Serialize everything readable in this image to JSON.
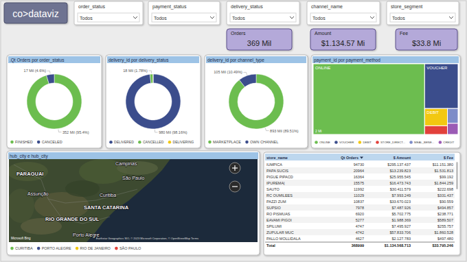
{
  "header": {
    "logo": "co>dataviz"
  },
  "filters": [
    {
      "label": "order_status",
      "value": "Todos"
    },
    {
      "label": "payment_status",
      "value": "Todos"
    },
    {
      "label": "delivery_status",
      "value": "Todos"
    },
    {
      "label": "channel_name",
      "value": "Todos"
    },
    {
      "label": "store_segment",
      "value": "Todos"
    }
  ],
  "cards": [
    {
      "title": "Orders",
      "value": "369 Mil"
    },
    {
      "title": "Amount",
      "value": "$1.134.57 Mi"
    },
    {
      "title": "Fee",
      "value": "$33.8 Mi"
    }
  ],
  "chart_data": [
    {
      "type": "donut",
      "title": ".Qt Orders por order_status",
      "categories": [
        "FINISHED",
        "CANCELED"
      ],
      "values": [
        352,
        17
      ],
      "value_labels": [
        "352 Mil (95.4%)",
        "17 Mil (4.6%)"
      ],
      "colors": [
        "#6cbd4f",
        "#3b4d8c"
      ],
      "data_labels": true,
      "legend": "bottom-left"
    },
    {
      "type": "donut",
      "title": "delivery_id por delivery_status",
      "categories": [
        "DELIVERED",
        "CANCELLED",
        "DELIVERING"
      ],
      "values": [
        980,
        18,
        0.6
      ],
      "value_labels": [
        "980 Mil (98.16%)",
        "18 Mil (1.78%)",
        null
      ],
      "colors": [
        "#3b4d8c",
        "#6cbd4f",
        "#f2c811"
      ],
      "data_labels": true,
      "legend": "bottom-left"
    },
    {
      "type": "donut",
      "title": "delivery_id por channel_type",
      "categories": [
        "MARKETPLACE",
        "OWN CHANNEL"
      ],
      "values": [
        893,
        105
      ],
      "value_labels": [
        "893 Mil (89.51%)",
        "105 Mil (10.49%)"
      ],
      "colors": [
        "#6cbd4f",
        "#3b4d8c"
      ],
      "data_labels": true,
      "legend": "bottom-left"
    },
    {
      "type": "treemap",
      "title": "payment_id por payment_method",
      "categories": [
        "ONLINE",
        "VOUCHER",
        "DEBIT",
        "STORE_DIRECT...",
        "MEAL_BENE...",
        "CREDIT"
      ],
      "values": [
        2,
        0.38,
        0.1,
        0.05,
        0.04,
        0.03
      ],
      "value_labels": [
        "2 Mi",
        null,
        null,
        null,
        null,
        null
      ],
      "colors": [
        "#6cbd4f",
        "#3b4d8c",
        "#f2c811",
        "#e2413b",
        "#7d8cc8",
        "#9b5bb5"
      ],
      "data_labels": true,
      "legend": "bottom-left"
    }
  ],
  "map": {
    "title": "hub_city e hub_city",
    "places": [
      "PARAGUAI",
      "Assunção",
      "Campinas",
      "São Paulo",
      "Curitiba",
      "SANTA CATARINA",
      "RIO GRANDE DO SUL",
      "Porto Alegre"
    ],
    "logo": "Microsoft Bing",
    "attribution": "Earthstar Geographics SIO, © 2023 Microsoft Corporation, © OpenStreetMap  Terms",
    "legend": [
      {
        "name": "CURITIBA",
        "color": "#6cbd4f"
      },
      {
        "name": "PORTO ALEGRE",
        "color": "#3b4d8c"
      },
      {
        "name": "RIO DE JANEIRO",
        "color": "#f2c811"
      },
      {
        "name": "SÃO PAULO",
        "color": "#e2413b"
      }
    ]
  },
  "table": {
    "columns": [
      "store_name",
      "Qt Orders",
      "$ Amount",
      "$ Fee"
    ],
    "rows": [
      [
        "IUMPICA",
        "94730",
        "$295.137.437",
        "$11.151.380"
      ],
      [
        "PAPA SUCIS",
        "20964",
        "$13.239.823",
        "$1.531.813"
      ],
      [
        "PIGUE PIPACD",
        "16364",
        "$25.955.545",
        "$99.192"
      ],
      [
        "IPUREMA|",
        "15575",
        "$16.473.743",
        "$1.844.259"
      ],
      [
        "SAUTO",
        "11992",
        "$30.411.579",
        "$222.698"
      ],
      [
        "RC OUMILEES",
        "11029",
        "$7.993.249",
        "$331.437"
      ],
      [
        "PAZZI ZUM",
        "10837",
        "$33.670.023",
        "$90.559"
      ],
      [
        "SUPSIO",
        "7978",
        "$7.487.926",
        "$494.857"
      ],
      [
        "RO PISMUAS",
        "6920",
        "$5.702.775",
        "$238.771"
      ],
      [
        "EAVAMI PIGOI",
        "5277",
        "$1.988.369",
        "$589.507"
      ],
      [
        "SPILUMI",
        "4747",
        "$7.495.927",
        "$255.757"
      ],
      [
        "ZUPULAR MUC",
        "4742",
        "$57.833.706",
        "$1.860.528"
      ],
      [
        "PALLO MOLLIDALA",
        "4627",
        "$2.127.783",
        "$497.480"
      ]
    ],
    "total": [
      "Total",
      "368999",
      "$1.134.568.713",
      "$33.795.246"
    ]
  }
}
